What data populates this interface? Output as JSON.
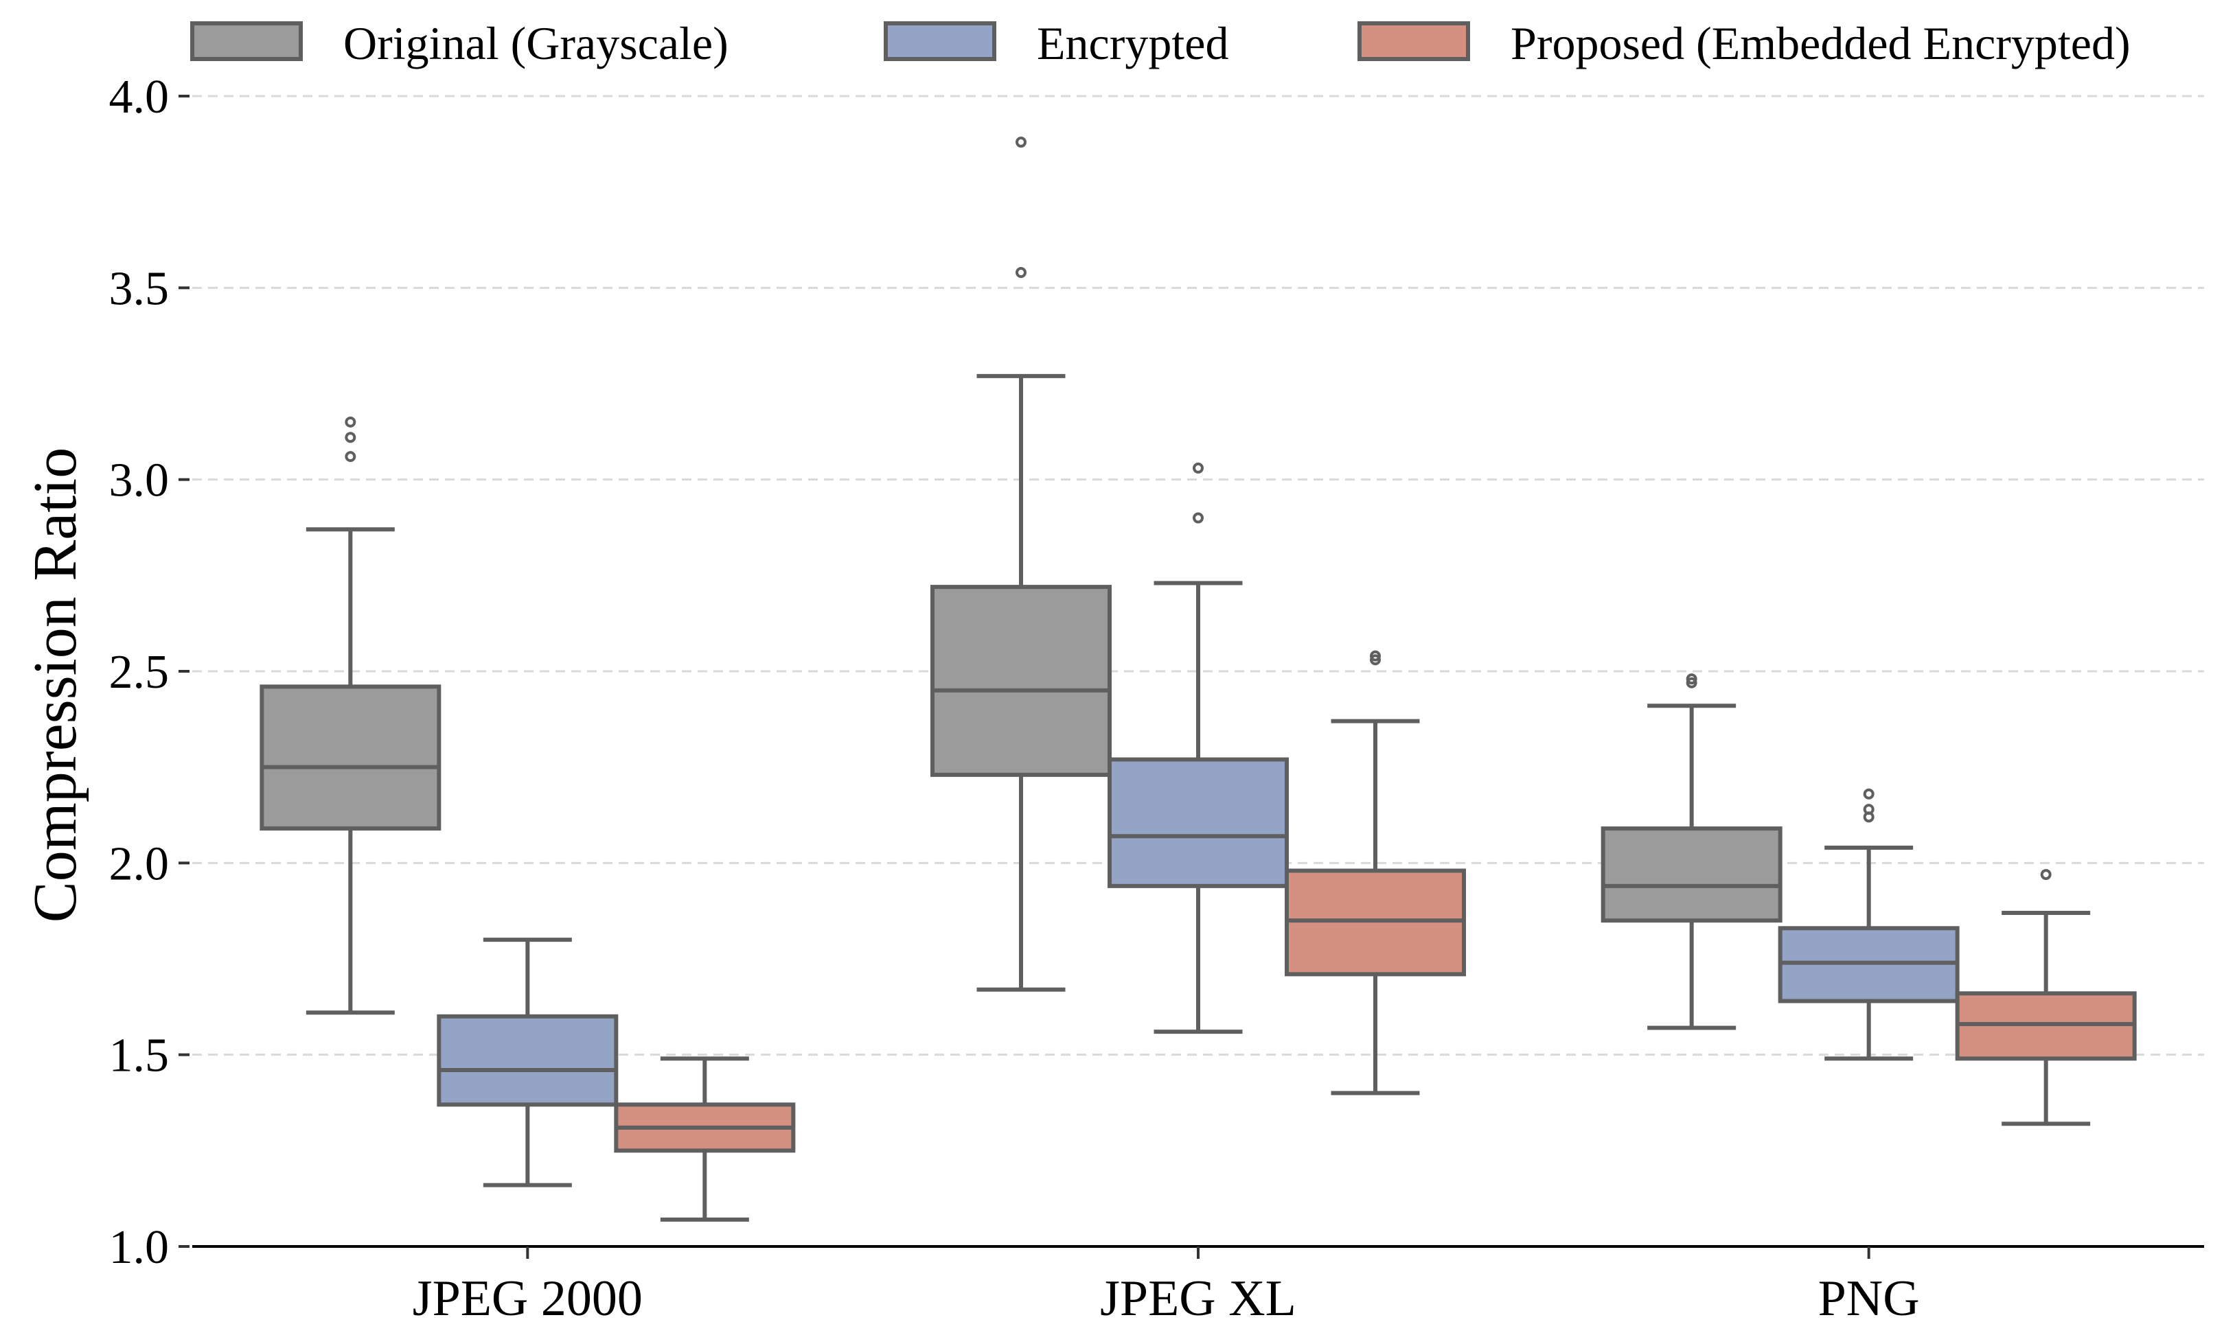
{
  "chart_data": {
    "type": "boxplot",
    "title": "",
    "xlabel": "",
    "ylabel": "Compression Ratio",
    "ylim": [
      1.0,
      4.0
    ],
    "yticks": [
      "1.0",
      "1.5",
      "2.0",
      "2.5",
      "3.0",
      "3.5",
      "4.0"
    ],
    "grid": "horizontal dashed",
    "legend_position": "top",
    "categories": [
      "JPEG 2000",
      "JPEG XL",
      "PNG"
    ],
    "series": [
      {
        "name": "Original (Grayscale)",
        "color": "#9b9b9b",
        "boxes": [
          {
            "whisker_low": 1.61,
            "q1": 2.09,
            "median": 2.25,
            "q3": 2.46,
            "whisker_high": 2.87,
            "outliers": [
              3.06,
              3.11,
              3.15
            ]
          },
          {
            "whisker_low": 1.67,
            "q1": 2.23,
            "median": 2.45,
            "q3": 2.72,
            "whisker_high": 3.27,
            "outliers": [
              3.54,
              3.88
            ]
          },
          {
            "whisker_low": 1.57,
            "q1": 1.85,
            "median": 1.94,
            "q3": 2.09,
            "whisker_high": 2.41,
            "outliers": [
              2.47,
              2.48
            ]
          }
        ]
      },
      {
        "name": "Encrypted",
        "color": "#93a4c6",
        "boxes": [
          {
            "whisker_low": 1.16,
            "q1": 1.37,
            "median": 1.46,
            "q3": 1.6,
            "whisker_high": 1.8,
            "outliers": []
          },
          {
            "whisker_low": 1.56,
            "q1": 1.94,
            "median": 2.07,
            "q3": 2.27,
            "whisker_high": 2.73,
            "outliers": [
              2.9,
              3.03
            ]
          },
          {
            "whisker_low": 1.49,
            "q1": 1.64,
            "median": 1.74,
            "q3": 1.83,
            "whisker_high": 2.04,
            "outliers": [
              2.12,
              2.14,
              2.18
            ]
          }
        ]
      },
      {
        "name": "Proposed (Embedded Encrypted)",
        "color": "#d49181",
        "boxes": [
          {
            "whisker_low": 1.07,
            "q1": 1.25,
            "median": 1.31,
            "q3": 1.37,
            "whisker_high": 1.49,
            "outliers": []
          },
          {
            "whisker_low": 1.4,
            "q1": 1.71,
            "median": 1.85,
            "q3": 1.98,
            "whisker_high": 2.37,
            "outliers": [
              2.53,
              2.54
            ]
          },
          {
            "whisker_low": 1.32,
            "q1": 1.49,
            "median": 1.58,
            "q3": 1.66,
            "whisker_high": 1.87,
            "outliers": [
              1.97
            ]
          }
        ]
      }
    ]
  }
}
